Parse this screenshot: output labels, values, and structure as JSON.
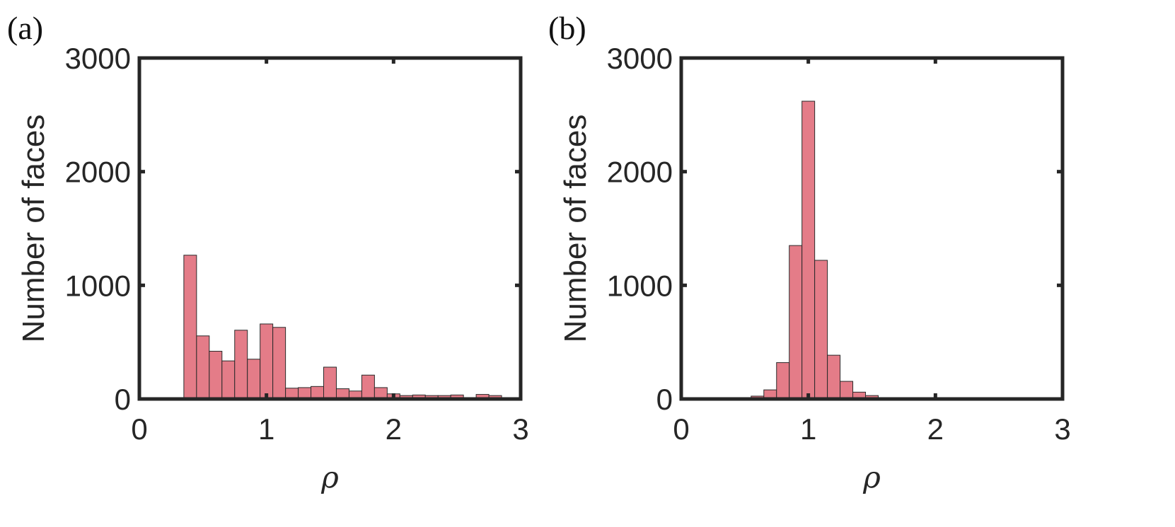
{
  "chart_data": [
    {
      "type": "bar",
      "panel_label": "(a)",
      "xlabel": "ρ",
      "ylabel": "Number of faces",
      "xlim": [
        0,
        3
      ],
      "ylim": [
        0,
        3000
      ],
      "xticks": [
        "0",
        "1",
        "2",
        "3"
      ],
      "yticks": [
        "0",
        "1000",
        "2000",
        "3000"
      ],
      "bin_width": 0.1,
      "bin_starts": [
        0.35,
        0.45,
        0.55,
        0.65,
        0.75,
        0.85,
        0.95,
        1.05,
        1.15,
        1.25,
        1.35,
        1.45,
        1.55,
        1.65,
        1.75,
        1.85,
        1.95,
        2.05,
        2.15,
        2.25,
        2.35,
        2.45,
        2.55,
        2.65,
        2.75
      ],
      "values": [
        1265,
        555,
        420,
        335,
        605,
        350,
        660,
        630,
        95,
        100,
        110,
        280,
        90,
        70,
        210,
        100,
        45,
        30,
        35,
        30,
        30,
        35,
        0,
        40,
        30
      ],
      "bar_color": "#e47c88",
      "grid": false
    },
    {
      "type": "bar",
      "panel_label": "(b)",
      "xlabel": "ρ",
      "ylabel": "Number of faces",
      "xlim": [
        0,
        3
      ],
      "ylim": [
        0,
        3000
      ],
      "xticks": [
        "0",
        "1",
        "2",
        "3"
      ],
      "yticks": [
        "0",
        "1000",
        "2000",
        "3000"
      ],
      "bin_width": 0.1,
      "bin_starts": [
        0.55,
        0.65,
        0.75,
        0.85,
        0.95,
        1.05,
        1.15,
        1.25,
        1.35,
        1.45,
        1.55,
        1.65
      ],
      "values": [
        25,
        80,
        320,
        1350,
        2620,
        1220,
        385,
        155,
        60,
        30,
        12,
        6
      ],
      "bar_color": "#e47c88",
      "grid": false
    }
  ]
}
